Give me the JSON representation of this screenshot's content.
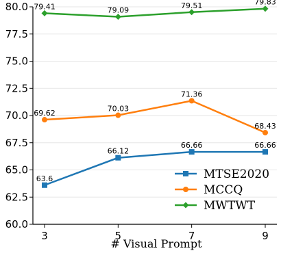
{
  "chart_data": {
    "type": "line",
    "xlabel": "# Visual Prompt",
    "ylabel": "",
    "title": "",
    "x": [
      3,
      5,
      7,
      9
    ],
    "x_tick_labels": [
      "3",
      "5",
      "7",
      "9"
    ],
    "y_tick_labels": [
      "60.0",
      "62.5",
      "65.0",
      "67.5",
      "70.0",
      "72.5",
      "75.0",
      "77.5",
      "80.0"
    ],
    "ylim": [
      60.0,
      80.0
    ],
    "grid": "horizontal",
    "legend_position": "bottom-right",
    "series": [
      {
        "name": "MTSE2020",
        "values": [
          63.6,
          66.12,
          66.66,
          66.66
        ],
        "labels": [
          "63.6",
          "66.12",
          "66.66",
          "66.66"
        ],
        "color": "#1f77b4",
        "marker": "square"
      },
      {
        "name": "MCCQ",
        "values": [
          69.62,
          70.03,
          71.36,
          68.43
        ],
        "labels": [
          "69.62",
          "70.03",
          "71.36",
          "68.43"
        ],
        "color": "#ff7f0e",
        "marker": "circle"
      },
      {
        "name": "MWTWT",
        "values": [
          79.41,
          79.09,
          79.51,
          79.83
        ],
        "labels": [
          "79.41",
          "79.09",
          "79.51",
          "79.83"
        ],
        "color": "#2ca02c",
        "marker": "diamond"
      }
    ]
  }
}
